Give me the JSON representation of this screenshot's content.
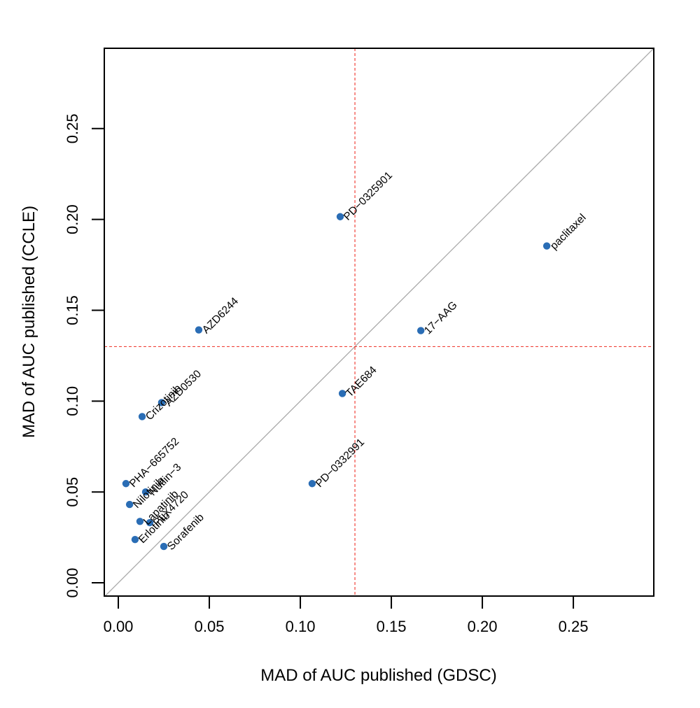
{
  "chart_data": {
    "type": "scatter",
    "title": "",
    "xlabel": "MAD of AUC published (GDSC)",
    "ylabel": "MAD of AUC published (CCLE)",
    "xlim": [
      -0.0077,
      0.2942
    ],
    "ylim": [
      -0.0073,
      0.2942
    ],
    "xticks": [
      0.0,
      0.05,
      0.1,
      0.15,
      0.2,
      0.25
    ],
    "xtick_labels": [
      "0.00",
      "0.05",
      "0.10",
      "0.15",
      "0.20",
      "0.25"
    ],
    "yticks": [
      0.0,
      0.05,
      0.1,
      0.15,
      0.2,
      0.25
    ],
    "ytick_labels": [
      "0.00",
      "0.05",
      "0.10",
      "0.15",
      "0.20",
      "0.25"
    ],
    "grid": false,
    "legend": null,
    "point_color": "#2a6db5",
    "reference_lines": {
      "diagonal": {
        "slope": 1,
        "intercept": 0,
        "color": "#aaaaaa"
      },
      "vline": {
        "x": 0.13,
        "color": "#f0433a",
        "style": "dashed"
      },
      "hline": {
        "y": 0.13,
        "color": "#f0433a",
        "style": "dashed"
      }
    },
    "points": [
      {
        "label": "PD−0325901",
        "x": 0.1219,
        "y": 0.2015
      },
      {
        "label": "paclitaxel",
        "x": 0.2354,
        "y": 0.1854
      },
      {
        "label": "AZD6244",
        "x": 0.0442,
        "y": 0.1392
      },
      {
        "label": "17−AAG",
        "x": 0.1662,
        "y": 0.1388
      },
      {
        "label": "TAE684",
        "x": 0.1231,
        "y": 0.1042
      },
      {
        "label": "AZD0530",
        "x": 0.0238,
        "y": 0.0992
      },
      {
        "label": "Crizotinib",
        "x": 0.0131,
        "y": 0.0915
      },
      {
        "label": "PHA−665752",
        "x": 0.0042,
        "y": 0.0546
      },
      {
        "label": "PD−0332991",
        "x": 0.1065,
        "y": 0.0546
      },
      {
        "label": "Nutlin−3",
        "x": 0.015,
        "y": 0.05
      },
      {
        "label": "Nilotinib",
        "x": 0.0062,
        "y": 0.0431
      },
      {
        "label": "Lapatinib",
        "x": 0.0119,
        "y": 0.0338
      },
      {
        "label": "PLX4720",
        "x": 0.0173,
        "y": 0.0331
      },
      {
        "label": "Erlotinib",
        "x": 0.0092,
        "y": 0.0238
      },
      {
        "label": "Sorafenib",
        "x": 0.025,
        "y": 0.02
      }
    ]
  }
}
